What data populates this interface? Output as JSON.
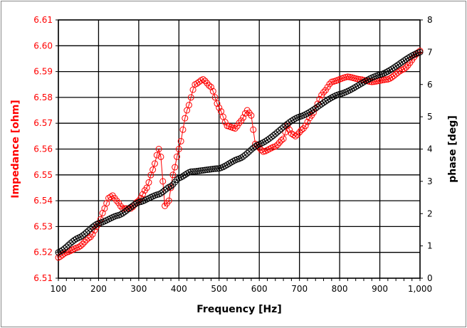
{
  "chart_data": {
    "type": "line",
    "title": "",
    "xlabel": "Frequency [Hz]",
    "ylabel": "Impedance [ohm]",
    "y2label": "phase [deg]",
    "xlim": [
      100,
      1000
    ],
    "ylim": [
      6.51,
      6.61
    ],
    "y2lim": [
      0,
      8
    ],
    "xticks": [
      "100",
      "200",
      "300",
      "400",
      "500",
      "600",
      "700",
      "800",
      "900",
      "1,000"
    ],
    "yticks": [
      "6.51",
      "6.52",
      "6.53",
      "6.54",
      "6.55",
      "6.56",
      "6.57",
      "6.58",
      "6.59",
      "6.60",
      "6.61"
    ],
    "y2ticks": [
      "0",
      "1",
      "2",
      "3",
      "4",
      "5",
      "6",
      "7",
      "8"
    ],
    "grid": true,
    "series": [
      {
        "name": "Impedance",
        "axis": "left",
        "color": "#ff0000",
        "marker": "circle",
        "x": [
          100,
          120,
          150,
          180,
          200,
          215,
          225,
          235,
          245,
          260,
          280,
          300,
          320,
          335,
          350,
          355,
          365,
          375,
          385,
          400,
          420,
          440,
          460,
          480,
          500,
          520,
          540,
          555,
          570,
          580,
          590,
          610,
          640,
          660,
          670,
          680,
          690,
          710,
          730,
          760,
          780,
          820,
          850,
          880,
          920,
          960,
          1000
        ],
        "y": [
          6.518,
          6.52,
          6.522,
          6.526,
          6.531,
          6.537,
          6.541,
          6.542,
          6.54,
          6.537,
          6.537,
          6.54,
          6.545,
          6.552,
          6.56,
          6.557,
          6.538,
          6.54,
          6.55,
          6.56,
          6.575,
          6.585,
          6.587,
          6.584,
          6.576,
          6.569,
          6.568,
          6.571,
          6.575,
          6.573,
          6.562,
          6.559,
          6.561,
          6.564,
          6.569,
          6.566,
          6.565,
          6.568,
          6.573,
          6.582,
          6.586,
          6.588,
          6.587,
          6.586,
          6.587,
          6.591,
          6.598
        ]
      },
      {
        "name": "Phase",
        "axis": "right",
        "color": "#000000",
        "marker": "circle",
        "x": [
          100,
          150,
          200,
          250,
          300,
          350,
          380,
          400,
          430,
          500,
          550,
          600,
          700,
          800,
          900,
          1000
        ],
        "y": [
          0.8,
          1.25,
          1.7,
          1.95,
          2.35,
          2.6,
          2.85,
          3.1,
          3.3,
          3.4,
          3.7,
          4.15,
          5.0,
          5.7,
          6.3,
          7.0
        ]
      }
    ]
  }
}
